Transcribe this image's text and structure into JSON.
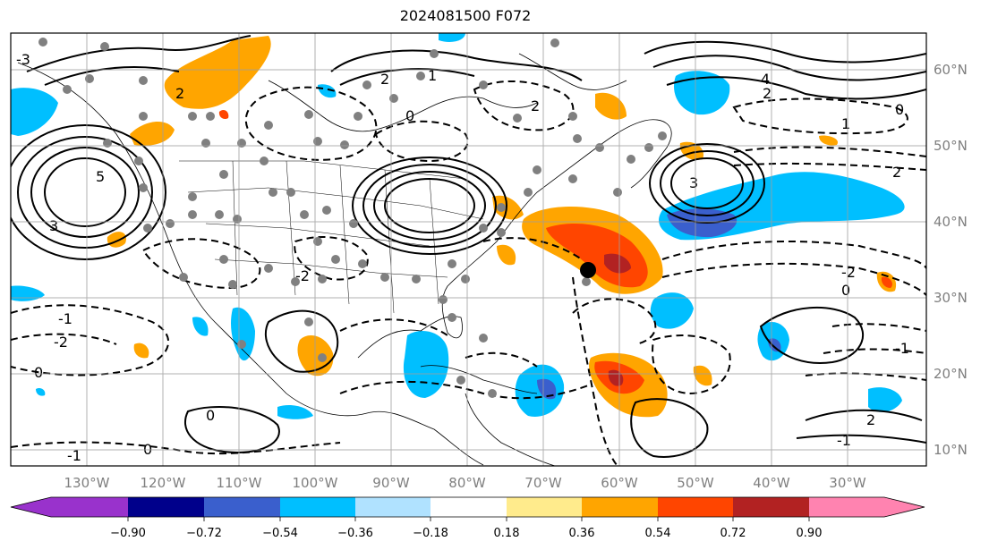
{
  "title": "2024081500 F072",
  "longitude_labels": [
    "130°W",
    "120°W",
    "110°W",
    "100°W",
    "90°W",
    "80°W",
    "70°W",
    "60°W",
    "50°W",
    "40°W",
    "30°W"
  ],
  "latitude_labels": [
    "60°N",
    "50°N",
    "40°N",
    "30°N",
    "20°N",
    "10°N"
  ],
  "colorbar": {
    "ticks": [
      "−0.90",
      "−0.72",
      "−0.54",
      "−0.36",
      "−0.18",
      "0.18",
      "0.36",
      "0.54",
      "0.72",
      "0.90"
    ],
    "colors": [
      "#9932cc",
      "#00008b",
      "#3a5fcd",
      "#00bfff",
      "#b0e2ff",
      "#ffffff",
      "#ffeb8c",
      "#ffa500",
      "#ff4500",
      "#b22222",
      "#ff83b0"
    ]
  },
  "contour_labels": [
    "5",
    "3",
    "2",
    "2",
    "1",
    "0",
    "2",
    "3",
    "4",
    "2",
    "2",
    "1",
    "0",
    "-2",
    "-3",
    "-1",
    "0",
    "-1",
    "-2",
    "0",
    "-1",
    "0",
    "-1",
    "-2",
    "2",
    "0"
  ],
  "marker": "black-dot"
}
